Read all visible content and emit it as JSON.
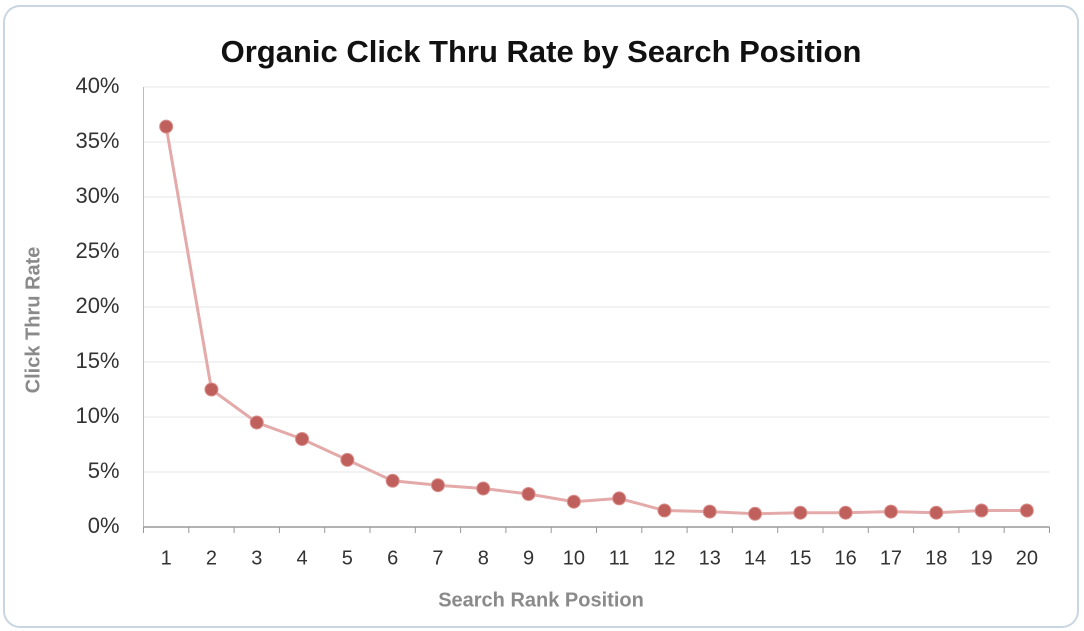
{
  "chart_data": {
    "type": "line",
    "title": "Organic Click Thru Rate by Search Position",
    "x_label": "Search Rank Position",
    "y_label": "Click Thru Rate",
    "categories": [
      "1",
      "2",
      "3",
      "4",
      "5",
      "6",
      "7",
      "8",
      "9",
      "10",
      "11",
      "12",
      "13",
      "14",
      "15",
      "16",
      "17",
      "18",
      "19",
      "20"
    ],
    "values": [
      36.4,
      12.5,
      9.5,
      8.0,
      6.1,
      4.2,
      3.8,
      3.5,
      3.0,
      2.3,
      2.6,
      1.5,
      1.4,
      1.2,
      1.3,
      1.3,
      1.4,
      1.3,
      1.5,
      1.5
    ],
    "line_color": "#e3aaa9",
    "marker_color": "#c0605c",
    "ylim": [
      0,
      40
    ],
    "yticks": [
      {
        "value": 0,
        "label": "0%"
      },
      {
        "value": 5,
        "label": "5%"
      },
      {
        "value": 10,
        "label": "10%"
      },
      {
        "value": 15,
        "label": "15%"
      },
      {
        "value": 20,
        "label": "20%"
      },
      {
        "value": 25,
        "label": "25%"
      },
      {
        "value": 30,
        "label": "30%"
      },
      {
        "value": 35,
        "label": "35%"
      },
      {
        "value": 40,
        "label": "40%"
      }
    ],
    "grid": true
  }
}
